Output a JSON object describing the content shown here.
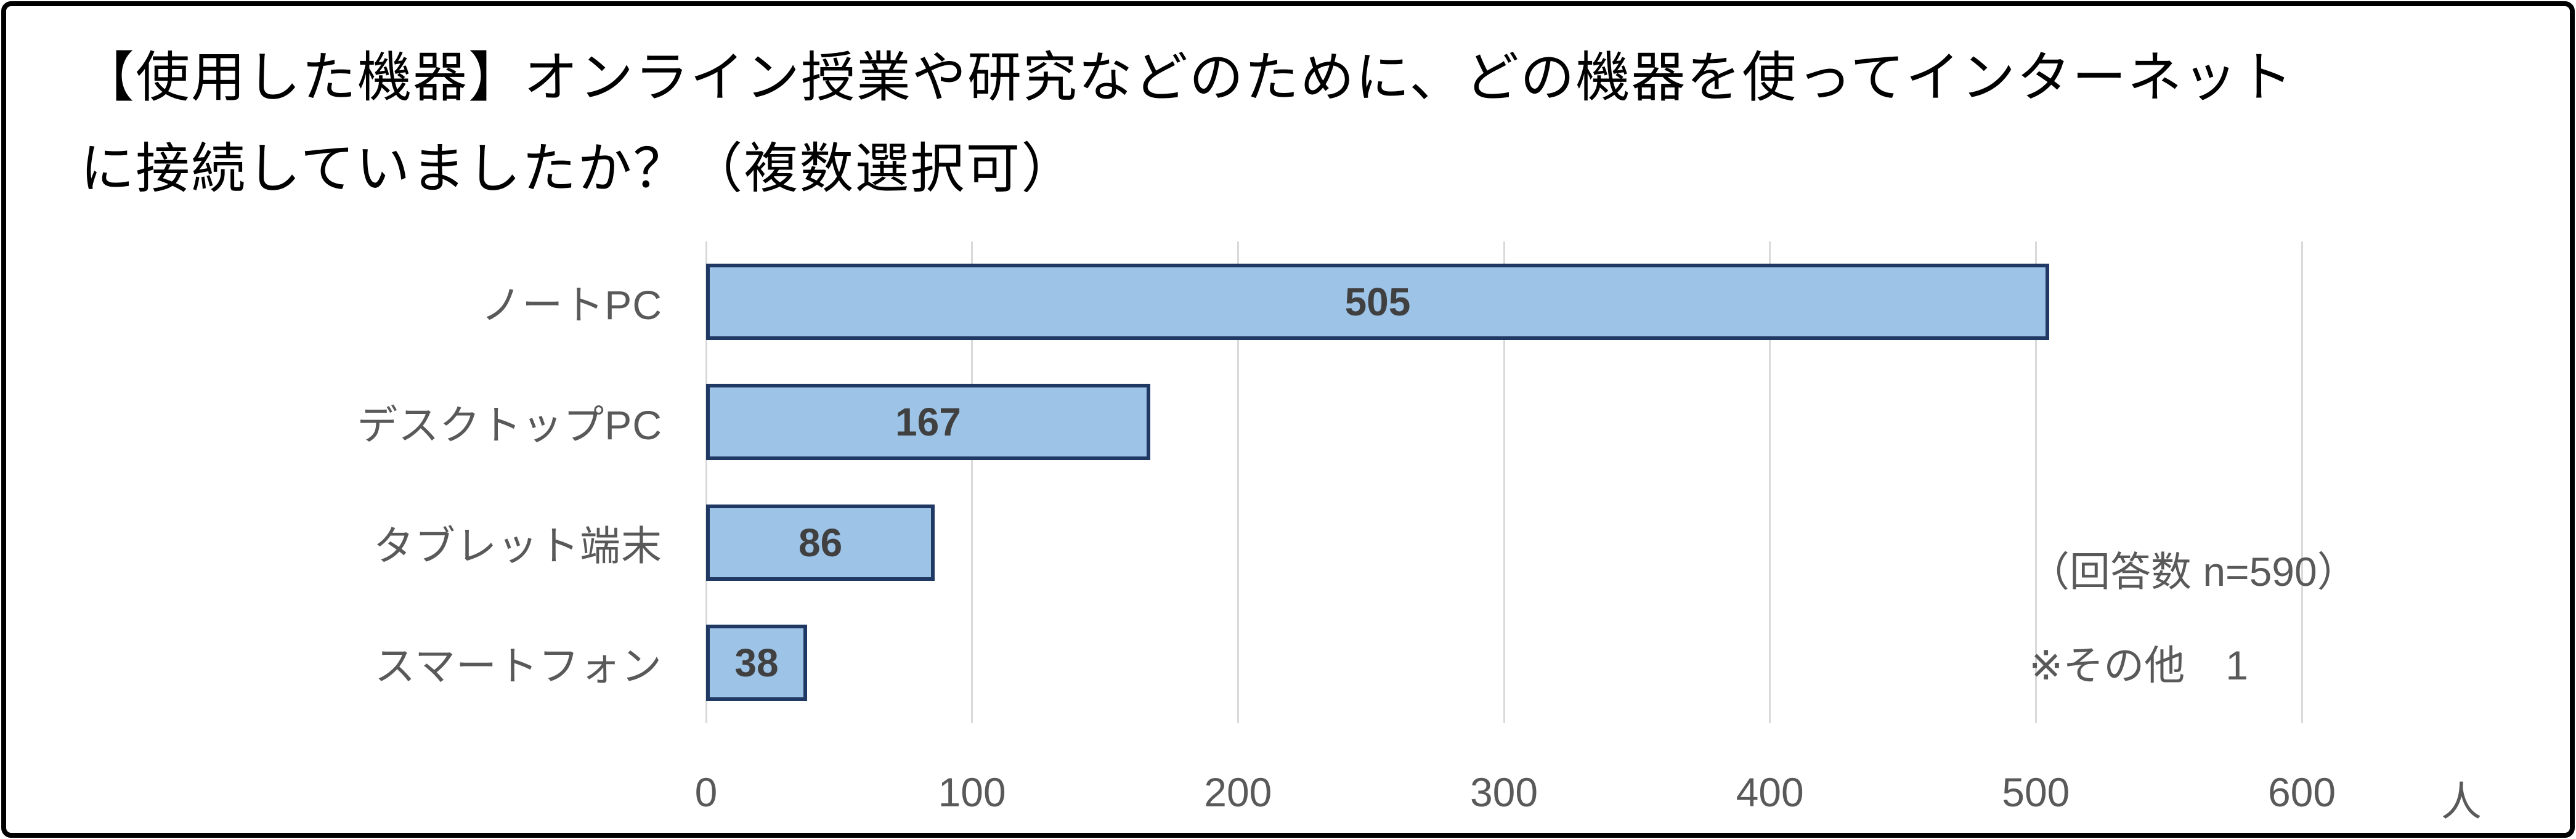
{
  "title": {
    "full": "【使用した機器】オンライン授業や研究などのために、どの機器を使ってインターネットに接続していましたか？（複数選択可）",
    "lines": [
      "【使用した機器】オンライン授業や研究などのために、どの機器を使ってインターネット",
      "に接続していましたか？（複数選択可）"
    ]
  },
  "chart_data": {
    "type": "bar",
    "orientation": "horizontal",
    "title": "【使用した機器】オンライン授業や研究などのために、どの機器を使ってインターネットに接続していましたか？（複数選択可）",
    "categories": [
      "ノートPC",
      "デスクトップPC",
      "タブレット端末",
      "スマートフォン"
    ],
    "values": [
      505,
      167,
      86,
      38
    ],
    "slugs": [
      "note-pc",
      "desktop-pc",
      "tablet",
      "smartphone"
    ],
    "xlim": [
      0,
      600
    ],
    "xticks": [
      0,
      100,
      200,
      300,
      400,
      500,
      600
    ],
    "xlabel_unit": "人",
    "grid": true,
    "legend": "none",
    "value_labels": "inside-center",
    "annotations": [
      "（回答数 n=590）",
      "※その他　1"
    ],
    "colors": {
      "bar_fill": "#9DC3E6",
      "bar_border": "#1F3864",
      "gridline": "#D9D9D9",
      "value_label": "#404040",
      "category_label": "#595959",
      "tick_label": "#595959",
      "annotation": "#595959",
      "title": "#000000",
      "frame_border": "#000000",
      "background": "#FFFFFF"
    }
  }
}
